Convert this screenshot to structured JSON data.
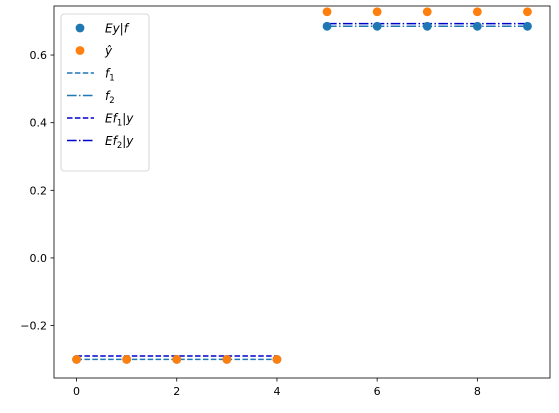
{
  "chart_data": {
    "type": "scatter",
    "title": "",
    "xlabel": "",
    "ylabel": "",
    "xlim": [
      -0.45,
      9.45
    ],
    "ylim": [
      -0.355,
      0.745
    ],
    "xticks": [
      0,
      2,
      4,
      6,
      8
    ],
    "yticks": [
      -0.2,
      0.0,
      0.2,
      0.4,
      0.6
    ],
    "xtick_labels": [
      "0",
      "2",
      "4",
      "6",
      "8"
    ],
    "ytick_labels": [
      "−0.2",
      "0.0",
      "0.2",
      "0.4",
      "0.6"
    ],
    "grid": false,
    "legend_position": "top-left",
    "series": [
      {
        "name": "Ey|f",
        "kind": "scatter",
        "color": "#1f77b4",
        "x": [
          0,
          1,
          2,
          3,
          4,
          5,
          6,
          7,
          8,
          9
        ],
        "y": [
          -0.3,
          -0.3,
          -0.3,
          -0.3,
          -0.3,
          0.685,
          0.685,
          0.685,
          0.685,
          0.685
        ]
      },
      {
        "name": "ŷ",
        "kind": "scatter",
        "color": "#ff7f0e",
        "x": [
          0,
          1,
          2,
          3,
          4,
          5,
          6,
          7,
          8,
          9
        ],
        "y": [
          -0.3,
          -0.3,
          -0.3,
          -0.3,
          -0.3,
          0.728,
          0.728,
          0.728,
          0.728,
          0.728
        ]
      },
      {
        "name": "f1",
        "kind": "line",
        "style": "dashed",
        "color": "#1f77b4",
        "x": [
          0,
          4
        ],
        "y": [
          -0.3,
          -0.3
        ]
      },
      {
        "name": "f2",
        "kind": "line",
        "style": "dashdot",
        "color": "#1f77b4",
        "x": [
          5,
          9
        ],
        "y": [
          0.685,
          0.685
        ]
      },
      {
        "name": "Ef1|y",
        "kind": "line",
        "style": "dashed",
        "color": "#0000cc",
        "x": [
          0,
          4
        ],
        "y": [
          -0.29,
          -0.29
        ]
      },
      {
        "name": "Ef2|y",
        "kind": "line",
        "style": "dashdot",
        "color": "#0000cc",
        "x": [
          5,
          9
        ],
        "y": [
          0.693,
          0.693
        ]
      }
    ],
    "legend": [
      {
        "text": "Ey|f",
        "sub": "",
        "rest": ""
      },
      {
        "text": "ŷ",
        "sub": "",
        "rest": ""
      },
      {
        "text": "f",
        "sub": "1",
        "rest": ""
      },
      {
        "text": "f",
        "sub": "2",
        "rest": ""
      },
      {
        "text": "Ef",
        "sub": "1",
        "rest": "|y"
      },
      {
        "text": "Ef",
        "sub": "2",
        "rest": "|y"
      }
    ]
  }
}
